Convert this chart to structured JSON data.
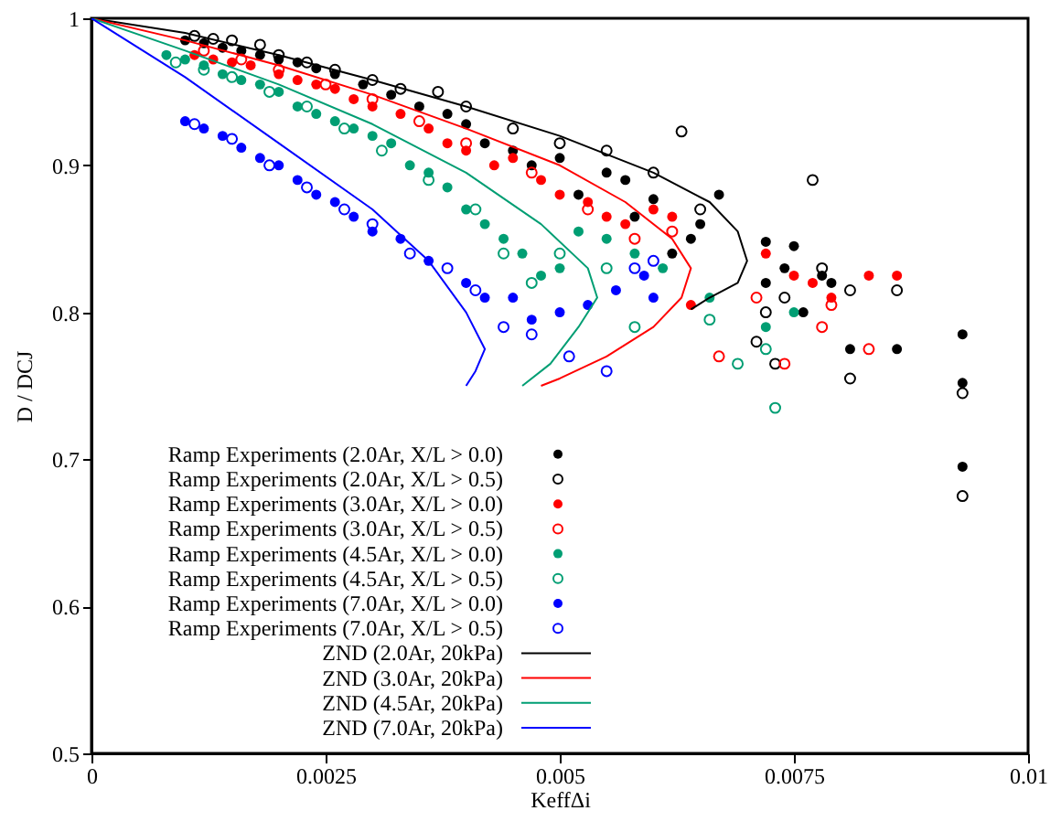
{
  "chart_data": {
    "type": "scatter",
    "xlabel": "KeffΔi",
    "ylabel": "D / DCJ",
    "xlim": [
      0,
      0.01
    ],
    "ylim": [
      0.5,
      1
    ],
    "xticks": [
      0,
      0.0025,
      0.005,
      0.0075,
      0.01
    ],
    "yticks": [
      0.5,
      0.6,
      0.7,
      0.8,
      0.9,
      1
    ],
    "grid": false,
    "legend": "bottom left",
    "marker": "circle",
    "series": [
      {
        "name": "Ramp Experiments (2.0Ar, X/L > 0.0)",
        "color": "#000000",
        "x": [
          0.001,
          0.0012,
          0.0014,
          0.0016,
          0.0018,
          0.002,
          0.0022,
          0.0024,
          0.0026,
          0.0029,
          0.0032,
          0.0035,
          0.0038,
          0.004,
          0.0042,
          0.0045,
          0.0047,
          0.005,
          0.0052,
          0.0055,
          0.0057,
          0.0058,
          0.006,
          0.0062,
          0.0064,
          0.0065,
          0.0067,
          0.0072,
          0.0072,
          0.0074,
          0.0075,
          0.0076,
          0.0078,
          0.0079,
          0.0081,
          0.0086,
          0.0093,
          0.0093,
          0.0093
        ],
        "values": [
          0.985,
          0.983,
          0.98,
          0.978,
          0.975,
          0.972,
          0.97,
          0.966,
          0.962,
          0.955,
          0.948,
          0.94,
          0.935,
          0.928,
          0.915,
          0.91,
          0.9,
          0.905,
          0.88,
          0.895,
          0.89,
          0.865,
          0.877,
          0.84,
          0.85,
          0.86,
          0.88,
          0.848,
          0.82,
          0.83,
          0.845,
          0.8,
          0.825,
          0.82,
          0.775,
          0.775,
          0.785,
          0.752,
          0.695
        ]
      },
      {
        "name": "Ramp Experiments (2.0Ar, X/L > 0.5)",
        "color": "#000000",
        "x": [
          0.0011,
          0.0013,
          0.0015,
          0.0018,
          0.002,
          0.0023,
          0.0026,
          0.003,
          0.0033,
          0.0037,
          0.004,
          0.0045,
          0.005,
          0.0055,
          0.006,
          0.0063,
          0.0065,
          0.0071,
          0.0072,
          0.0073,
          0.0074,
          0.0077,
          0.0078,
          0.0081,
          0.0081,
          0.0086,
          0.0093,
          0.0093
        ],
        "values": [
          0.988,
          0.986,
          0.985,
          0.982,
          0.975,
          0.97,
          0.965,
          0.958,
          0.952,
          0.95,
          0.94,
          0.925,
          0.915,
          0.91,
          0.895,
          0.923,
          0.87,
          0.78,
          0.8,
          0.765,
          0.81,
          0.89,
          0.83,
          0.815,
          0.755,
          0.815,
          0.745,
          0.675
        ]
      },
      {
        "name": "Ramp Experiments (3.0Ar, X/L > 0.0)",
        "color": "#ff0000",
        "x": [
          0.0011,
          0.0013,
          0.0015,
          0.0017,
          0.002,
          0.0022,
          0.0024,
          0.0026,
          0.0028,
          0.003,
          0.0033,
          0.0036,
          0.0038,
          0.004,
          0.0043,
          0.0045,
          0.0048,
          0.005,
          0.0053,
          0.0055,
          0.0057,
          0.006,
          0.0062,
          0.0064,
          0.0072,
          0.0075,
          0.0077,
          0.0079,
          0.0083,
          0.0086
        ],
        "values": [
          0.975,
          0.972,
          0.97,
          0.968,
          0.962,
          0.958,
          0.955,
          0.952,
          0.945,
          0.94,
          0.935,
          0.925,
          0.915,
          0.91,
          0.9,
          0.905,
          0.89,
          0.88,
          0.875,
          0.865,
          0.86,
          0.87,
          0.865,
          0.805,
          0.84,
          0.825,
          0.82,
          0.81,
          0.825,
          0.825
        ]
      },
      {
        "name": "Ramp Experiments (3.0Ar, X/L > 0.5)",
        "color": "#ff0000",
        "x": [
          0.0012,
          0.0016,
          0.002,
          0.0025,
          0.003,
          0.0035,
          0.004,
          0.0047,
          0.0053,
          0.0058,
          0.0062,
          0.0067,
          0.0071,
          0.0074,
          0.0078,
          0.0079,
          0.0083
        ],
        "values": [
          0.978,
          0.972,
          0.965,
          0.955,
          0.945,
          0.93,
          0.915,
          0.895,
          0.87,
          0.85,
          0.855,
          0.77,
          0.81,
          0.765,
          0.79,
          0.805,
          0.775
        ]
      },
      {
        "name": "Ramp Experiments (4.5Ar, X/L > 0.0)",
        "color": "#009e73",
        "x": [
          0.0008,
          0.001,
          0.0012,
          0.0014,
          0.0016,
          0.0018,
          0.002,
          0.0022,
          0.0024,
          0.0026,
          0.0028,
          0.003,
          0.0032,
          0.0034,
          0.0036,
          0.0038,
          0.004,
          0.0042,
          0.0044,
          0.0046,
          0.0048,
          0.005,
          0.0052,
          0.0055,
          0.0058,
          0.0061,
          0.0066,
          0.0072,
          0.0075
        ],
        "values": [
          0.975,
          0.972,
          0.968,
          0.962,
          0.958,
          0.955,
          0.95,
          0.94,
          0.935,
          0.93,
          0.925,
          0.92,
          0.915,
          0.9,
          0.895,
          0.885,
          0.87,
          0.86,
          0.85,
          0.84,
          0.825,
          0.83,
          0.855,
          0.85,
          0.84,
          0.83,
          0.81,
          0.79,
          0.8
        ]
      },
      {
        "name": "Ramp Experiments (4.5Ar, X/L > 0.5)",
        "color": "#009e73",
        "x": [
          0.0009,
          0.0012,
          0.0015,
          0.0019,
          0.0023,
          0.0027,
          0.0031,
          0.0036,
          0.0041,
          0.0044,
          0.0047,
          0.005,
          0.0055,
          0.0058,
          0.0066,
          0.0069,
          0.0072,
          0.0073
        ],
        "values": [
          0.97,
          0.965,
          0.96,
          0.95,
          0.94,
          0.925,
          0.91,
          0.89,
          0.87,
          0.84,
          0.82,
          0.84,
          0.83,
          0.79,
          0.795,
          0.765,
          0.775,
          0.735
        ]
      },
      {
        "name": "Ramp Experiments (7.0Ar, X/L > 0.0)",
        "color": "#0000ff",
        "x": [
          0.001,
          0.0012,
          0.0014,
          0.0016,
          0.0018,
          0.002,
          0.0022,
          0.0024,
          0.0026,
          0.0028,
          0.003,
          0.0033,
          0.0036,
          0.004,
          0.0042,
          0.0045,
          0.0047,
          0.005,
          0.0053,
          0.0056,
          0.0059,
          0.006
        ],
        "values": [
          0.93,
          0.925,
          0.92,
          0.912,
          0.905,
          0.9,
          0.89,
          0.88,
          0.875,
          0.865,
          0.855,
          0.85,
          0.835,
          0.82,
          0.81,
          0.81,
          0.795,
          0.8,
          0.805,
          0.815,
          0.825,
          0.81
        ]
      },
      {
        "name": "Ramp Experiments (7.0Ar, X/L > 0.5)",
        "color": "#0000ff",
        "x": [
          0.0011,
          0.0015,
          0.0019,
          0.0023,
          0.0027,
          0.003,
          0.0034,
          0.0038,
          0.0041,
          0.0044,
          0.0047,
          0.0051,
          0.0055,
          0.0058,
          0.006
        ],
        "values": [
          0.928,
          0.918,
          0.9,
          0.885,
          0.87,
          0.86,
          0.84,
          0.83,
          0.815,
          0.79,
          0.785,
          0.77,
          0.76,
          0.83,
          0.835
        ]
      },
      {
        "name": "ZND (2.0Ar, 20kPa)",
        "color": "#000000",
        "type": "line",
        "line_style": "solid",
        "marker": "none",
        "x": [
          0,
          0.001,
          0.002,
          0.003,
          0.004,
          0.005,
          0.006,
          0.0066,
          0.0069,
          0.007,
          0.0069,
          0.0066,
          0.0064
        ],
        "values": [
          1,
          0.99,
          0.975,
          0.958,
          0.94,
          0.92,
          0.895,
          0.875,
          0.855,
          0.835,
          0.82,
          0.81,
          0.802
        ]
      },
      {
        "name": "ZND (3.0Ar, 20kPa)",
        "color": "#ff0000",
        "type": "line",
        "line_style": "solid",
        "marker": "none",
        "x": [
          0,
          0.001,
          0.002,
          0.003,
          0.004,
          0.005,
          0.0057,
          0.0062,
          0.0064,
          0.0063,
          0.006,
          0.0055,
          0.005,
          0.0048
        ],
        "values": [
          1,
          0.985,
          0.968,
          0.948,
          0.925,
          0.9,
          0.875,
          0.85,
          0.83,
          0.81,
          0.79,
          0.77,
          0.755,
          0.75
        ]
      },
      {
        "name": "ZND (4.5Ar, 20kPa)",
        "color": "#009e73",
        "type": "line",
        "line_style": "solid",
        "marker": "none",
        "x": [
          0,
          0.001,
          0.002,
          0.003,
          0.004,
          0.0048,
          0.0053,
          0.0054,
          0.0052,
          0.0049,
          0.0046
        ],
        "values": [
          1,
          0.978,
          0.955,
          0.928,
          0.895,
          0.86,
          0.83,
          0.81,
          0.79,
          0.765,
          0.75
        ]
      },
      {
        "name": "ZND (7.0Ar, 20kPa)",
        "color": "#0000ff",
        "type": "line",
        "line_style": "solid",
        "marker": "none",
        "x": [
          0,
          0.001,
          0.002,
          0.003,
          0.0036,
          0.004,
          0.0042,
          0.0041,
          0.004
        ],
        "values": [
          1,
          0.96,
          0.915,
          0.87,
          0.835,
          0.8,
          0.775,
          0.76,
          0.75
        ]
      }
    ]
  }
}
